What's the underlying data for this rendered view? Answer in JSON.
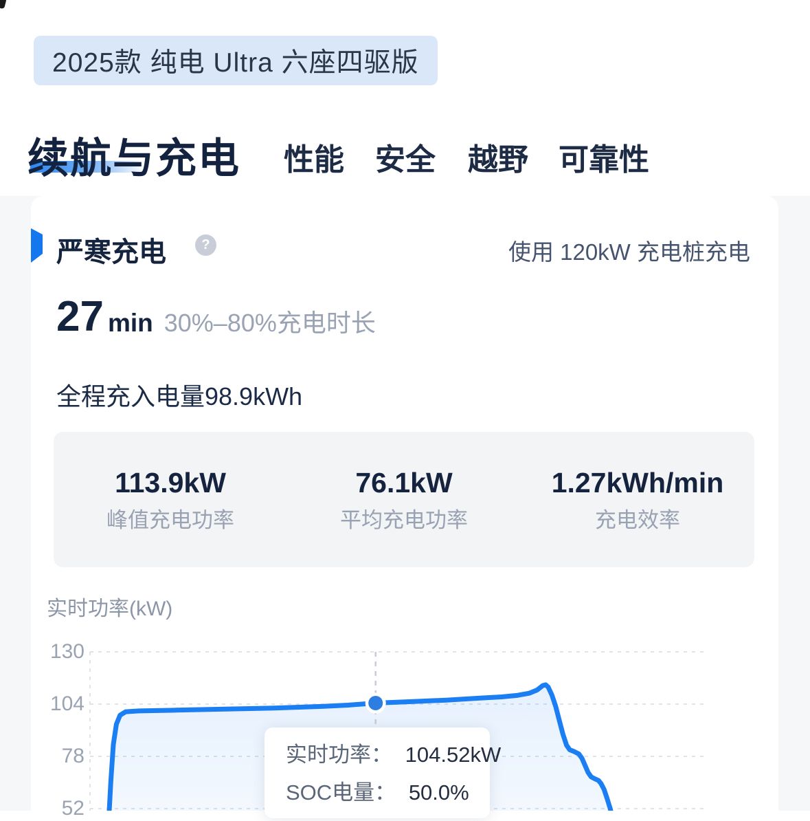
{
  "trim_badge": {
    "label": "2025款 纯电 Ultra 六座四驱版"
  },
  "tabs": {
    "items": [
      {
        "label": "续航与充电",
        "active": true
      },
      {
        "label": "性能",
        "active": false
      },
      {
        "label": "安全",
        "active": false
      },
      {
        "label": "越野",
        "active": false
      },
      {
        "label": "可靠性",
        "active": false
      }
    ]
  },
  "section": {
    "title": "严寒充电",
    "help_icon": "?",
    "pile_note": "使用 120kW 充电桩充电",
    "duration": {
      "value": "27",
      "unit": "min",
      "desc": "30%–80%充电时长"
    },
    "energy_note": "全程充入电量98.9kWh",
    "stats": [
      {
        "value": "113.9kW",
        "label": "峰值充电功率"
      },
      {
        "value": "76.1kW",
        "label": "平均充电功率"
      },
      {
        "value": "1.27kWh/min",
        "label": "充电效率"
      }
    ]
  },
  "chart_data": {
    "type": "area",
    "title": "实时功率(kW)",
    "ylabel": "实时功率(kW)",
    "yticks": [
      130,
      104,
      78,
      52
    ],
    "ylim_visible": [
      46,
      130
    ],
    "grid": "dashed-horizontal",
    "legend": "none",
    "line_color": "#1b7ef2",
    "marker_color": "#2e7de2",
    "series_name": "实时功率",
    "points": [
      {
        "x": 0.031,
        "kw": 49
      },
      {
        "x": 0.034,
        "kw": 66
      },
      {
        "x": 0.038,
        "kw": 84
      },
      {
        "x": 0.043,
        "kw": 94
      },
      {
        "x": 0.049,
        "kw": 98.5
      },
      {
        "x": 0.058,
        "kw": 100.2
      },
      {
        "x": 0.08,
        "kw": 100.6
      },
      {
        "x": 0.14,
        "kw": 101.0
      },
      {
        "x": 0.22,
        "kw": 101.5
      },
      {
        "x": 0.3,
        "kw": 102.0
      },
      {
        "x": 0.38,
        "kw": 102.9
      },
      {
        "x": 0.42,
        "kw": 103.5
      },
      {
        "x": 0.465,
        "kw": 104.52
      },
      {
        "x": 0.52,
        "kw": 105.2
      },
      {
        "x": 0.58,
        "kw": 106.0
      },
      {
        "x": 0.63,
        "kw": 106.9
      },
      {
        "x": 0.67,
        "kw": 107.6
      },
      {
        "x": 0.695,
        "kw": 108.3
      },
      {
        "x": 0.715,
        "kw": 109.4
      },
      {
        "x": 0.728,
        "kw": 111.0
      },
      {
        "x": 0.737,
        "kw": 113.2
      },
      {
        "x": 0.742,
        "kw": 113.6
      },
      {
        "x": 0.746,
        "kw": 112.5
      },
      {
        "x": 0.752,
        "kw": 108.5
      },
      {
        "x": 0.758,
        "kw": 103
      },
      {
        "x": 0.764,
        "kw": 96
      },
      {
        "x": 0.77,
        "kw": 89
      },
      {
        "x": 0.776,
        "kw": 83.5
      },
      {
        "x": 0.781,
        "kw": 81.3
      },
      {
        "x": 0.789,
        "kw": 80.3
      },
      {
        "x": 0.796,
        "kw": 79.2
      },
      {
        "x": 0.801,
        "kw": 77.0
      },
      {
        "x": 0.806,
        "kw": 73.5
      },
      {
        "x": 0.811,
        "kw": 70.0
      },
      {
        "x": 0.816,
        "kw": 67.8
      },
      {
        "x": 0.822,
        "kw": 66.8
      },
      {
        "x": 0.828,
        "kw": 66.0
      },
      {
        "x": 0.832,
        "kw": 64.5
      },
      {
        "x": 0.837,
        "kw": 61.5
      },
      {
        "x": 0.842,
        "kw": 57.0
      },
      {
        "x": 0.847,
        "kw": 52.0
      },
      {
        "x": 0.852,
        "kw": 46.0
      }
    ],
    "marker": {
      "x": 0.465,
      "kw": 104.52,
      "soc": "50.0%"
    },
    "tooltip": {
      "rows": [
        {
          "label": "实时功率：",
          "value": "104.52kW"
        },
        {
          "label": "SOC电量：",
          "value": "50.0%"
        }
      ]
    }
  }
}
